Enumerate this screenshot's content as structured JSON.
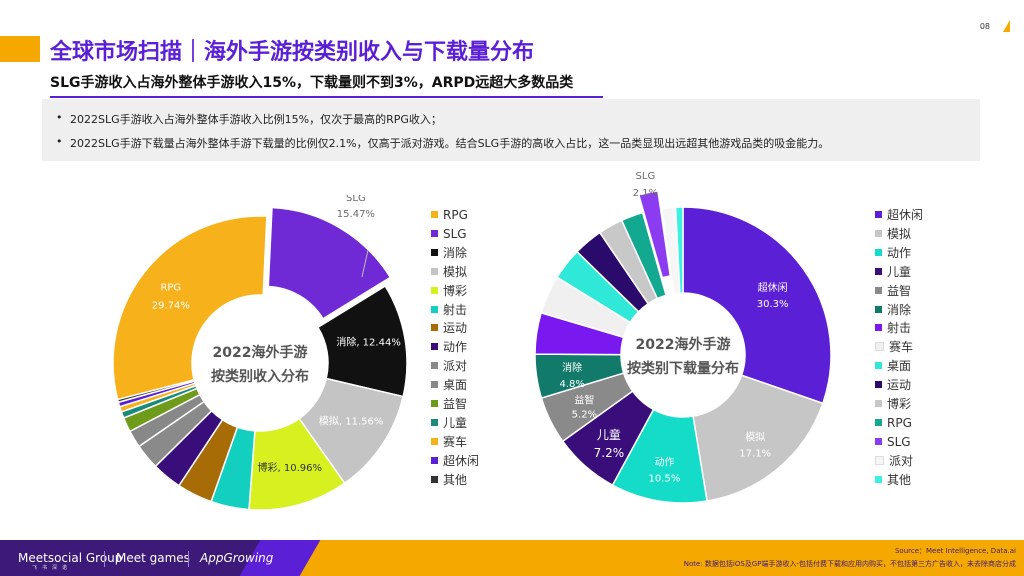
{
  "page": {
    "number": "08"
  },
  "header": {
    "title": "全球市场扫描｜海外手游按类别收入与下载量分布",
    "subtitle": "SLG手游收入占海外整体手游收入15%，下载量则不到3%，ARPD远超大多数品类"
  },
  "bullets": [
    "2022SLG手游收入占海外整体手游收入比例15%，仅次于最高的RPG收入；",
    "2022SLG手游下载量占海外整体手游下载量的比例仅2.1%，仅高于派对游戏。结合SLG手游的高收入占比，这一品类显现出远超其他游戏品类的吸金能力。"
  ],
  "colors": {
    "RPG": "#f7b11b",
    "SLG": "#6f2ad6",
    "消除": "#111111",
    "模拟": "#c4c4c4",
    "博彩": "#d7f01f",
    "射击": "#13cfc0",
    "运动": "#a86c06",
    "动作": "#3a0e7a",
    "派对": "#8a8a8a",
    "桌面": "#888888",
    "益智": "#6f9b1a",
    "儿童": "#1a8a7a",
    "赛车": "#f7b11b",
    "超休闲": "#5b1fd6",
    "其他": "#333333",
    "dl_超休闲": "#5b1fd6",
    "dl_模拟": "#c6c6c6",
    "dl_动作": "#15dcc8",
    "dl_儿童": "#3a0e7a",
    "dl_益智": "#8a8a8a",
    "dl_消除": "#127a6a",
    "dl_射击": "#7a18f0",
    "dl_赛车": "#f0f0f0",
    "dl_桌面": "#2fe8d8",
    "dl_运动": "#2a0a6a",
    "dl_博彩": "#c8c8c8",
    "dl_RPG": "#13a890",
    "dl_SLG": "#8b3cf0",
    "dl_派对": "#f6f6f6",
    "dl_其他": "#3ef0e2"
  },
  "chart_data": [
    {
      "type": "pie",
      "title": "2022海外手游按类别收入分布",
      "center_label_lines": [
        "2022海外手游",
        "按类别收入分布"
      ],
      "slices": [
        {
          "label": "RPG",
          "value": 29.74,
          "label_text": "RPG",
          "value_text": "29.74%"
        },
        {
          "label": "SLG",
          "value": 15.47,
          "label_text": "SLG",
          "value_text": "15.47%"
        },
        {
          "label": "消除",
          "value": 12.44,
          "label_text": "消除, 12.44%"
        },
        {
          "label": "模拟",
          "value": 11.56,
          "label_text": "模拟, 11.56%"
        },
        {
          "label": "博彩",
          "value": 10.96,
          "label_text": "博彩, 10.96%"
        },
        {
          "label": "射击",
          "value": 4.2
        },
        {
          "label": "运动",
          "value": 3.9
        },
        {
          "label": "动作",
          "value": 3.3
        },
        {
          "label": "派对",
          "value": 2.8
        },
        {
          "label": "桌面",
          "value": 1.9
        },
        {
          "label": "益智",
          "value": 1.6
        },
        {
          "label": "儿童",
          "value": 0.7
        },
        {
          "label": "赛车",
          "value": 0.6
        },
        {
          "label": "超休闲",
          "value": 0.5
        },
        {
          "label": "其他",
          "value": 0.3
        }
      ],
      "legend": [
        "RPG",
        "SLG",
        "消除",
        "模拟",
        "博彩",
        "射击",
        "运动",
        "动作",
        "派对",
        "桌面",
        "益智",
        "儿童",
        "赛车",
        "超休闲",
        "其他"
      ],
      "legend_placement": "right"
    },
    {
      "type": "pie",
      "title": "2022海外手游按类别下载量分布",
      "center_label_lines": [
        "2022海外手游",
        "按类别下载量分布"
      ],
      "slices": [
        {
          "label": "超休闲",
          "value": 30.3,
          "label_text": "超休闲",
          "value_text": "30.3%"
        },
        {
          "label": "模拟",
          "value": 17.1,
          "label_text": "模拟",
          "value_text": "17.1%"
        },
        {
          "label": "动作",
          "value": 10.5,
          "label_text": "动作",
          "value_text": "10.5%"
        },
        {
          "label": "儿童",
          "value": 7.2,
          "label_text": "儿童",
          "value_text": "7.2%"
        },
        {
          "label": "益智",
          "value": 5.2,
          "label_text": "益智",
          "value_text": "5.2%"
        },
        {
          "label": "消除",
          "value": 4.8,
          "label_text": "消除",
          "value_text": "4.8%"
        },
        {
          "label": "射击",
          "value": 4.5
        },
        {
          "label": "赛车",
          "value": 4.2
        },
        {
          "label": "桌面",
          "value": 3.5
        },
        {
          "label": "运动",
          "value": 3.2
        },
        {
          "label": "博彩",
          "value": 2.7
        },
        {
          "label": "RPG",
          "value": 2.4
        },
        {
          "label": "SLG",
          "value": 2.1,
          "label_text": "SLG",
          "value_text": "2.1%"
        },
        {
          "label": "派对",
          "value": 1.5
        },
        {
          "label": "其他",
          "value": 0.8
        }
      ],
      "legend": [
        "超休闲",
        "模拟",
        "动作",
        "儿童",
        "益智",
        "消除",
        "射击",
        "赛车",
        "桌面",
        "运动",
        "博彩",
        "RPG",
        "SLG",
        "派对",
        "其他"
      ],
      "legend_placement": "right"
    }
  ],
  "footer": {
    "brand1": "Meetsocial Group",
    "brand1_sub": "飞书深诺",
    "brand2": "Meet games",
    "brand3": "AppGrowing",
    "source": "Source：Meet Intelligence, Data.ai",
    "note": "Note: 数据包括iOS及GP端手游收入-包括付费下载和应用内购买，不包括第三方广告收入，未去除商店分成"
  }
}
